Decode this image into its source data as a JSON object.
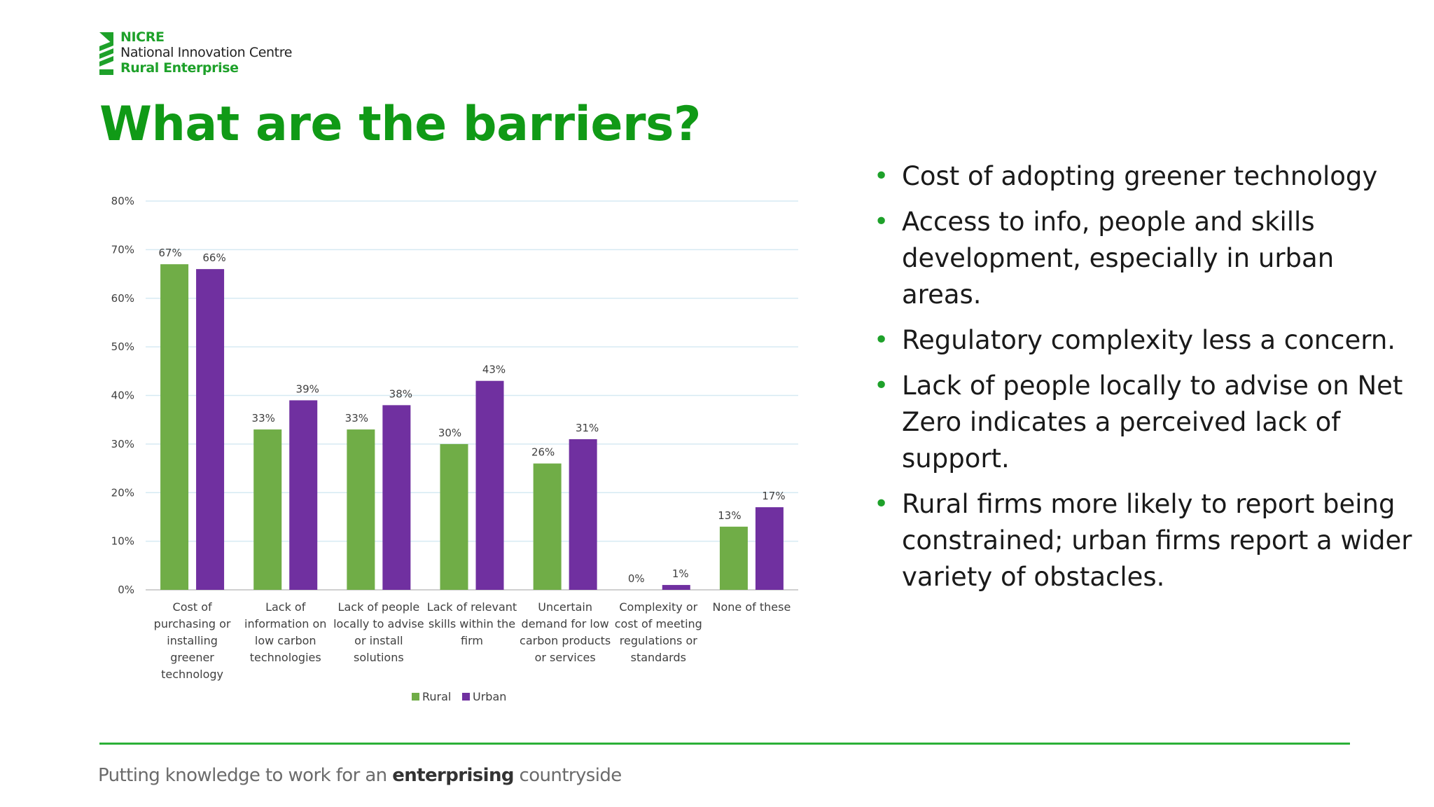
{
  "logo": {
    "line1": "NICRE",
    "line2": "National Innovation Centre",
    "line3": "Rural Enterprise"
  },
  "title": "What are the barriers?",
  "bullets": [
    "Cost of adopting greener technology",
    "Access to info, people and skills development, especially in urban areas.",
    "Regulatory complexity less a concern.",
    "Lack of people locally to advise on Net Zero indicates a perceived lack of support.",
    "Rural firms more likely to report being constrained; urban firms report a wider variety of obstacles."
  ],
  "footer": {
    "pre": "Putting knowledge to work for an ",
    "em": "enterprising",
    "post": " countryside"
  },
  "chart_data": {
    "type": "bar",
    "categories": [
      [
        "Cost of",
        "purchasing or",
        "installing",
        "greener",
        "technology"
      ],
      [
        "Lack of",
        "information on",
        "low carbon",
        "technologies"
      ],
      [
        "Lack of people",
        "locally to advise",
        "or install",
        "solutions"
      ],
      [
        "Lack of relevant",
        "skills within the",
        "firm"
      ],
      [
        "Uncertain",
        "demand for low",
        "carbon products",
        "or services"
      ],
      [
        "Complexity or",
        "cost of meeting",
        "regulations or",
        "standards"
      ],
      [
        "None of these"
      ]
    ],
    "series": [
      {
        "name": "Rural",
        "values": [
          67,
          33,
          33,
          30,
          26,
          0,
          13
        ],
        "labels": [
          "67%",
          "33%",
          "33%",
          "30%",
          "26%",
          "0%",
          "13%"
        ],
        "color": "#70ad47"
      },
      {
        "name": "Urban",
        "values": [
          66,
          39,
          38,
          43,
          31,
          1,
          17
        ],
        "labels": [
          "66%",
          "39%",
          "38%",
          "43%",
          "31%",
          "1%",
          "17%"
        ],
        "color": "#7030a0"
      }
    ],
    "yticks": [
      "0%",
      "10%",
      "20%",
      "30%",
      "40%",
      "50%",
      "60%",
      "70%",
      "80%"
    ],
    "ylim": [
      0,
      80
    ],
    "grid": true,
    "legend": "bottom-center",
    "gridColor": "#d6eaf3",
    "axisColor": "#d0d0d0",
    "textColor": "#404040"
  },
  "colors": {
    "title": "#109a16",
    "accent": "#1ea12a",
    "bullet_text": "#1a1a1a"
  }
}
